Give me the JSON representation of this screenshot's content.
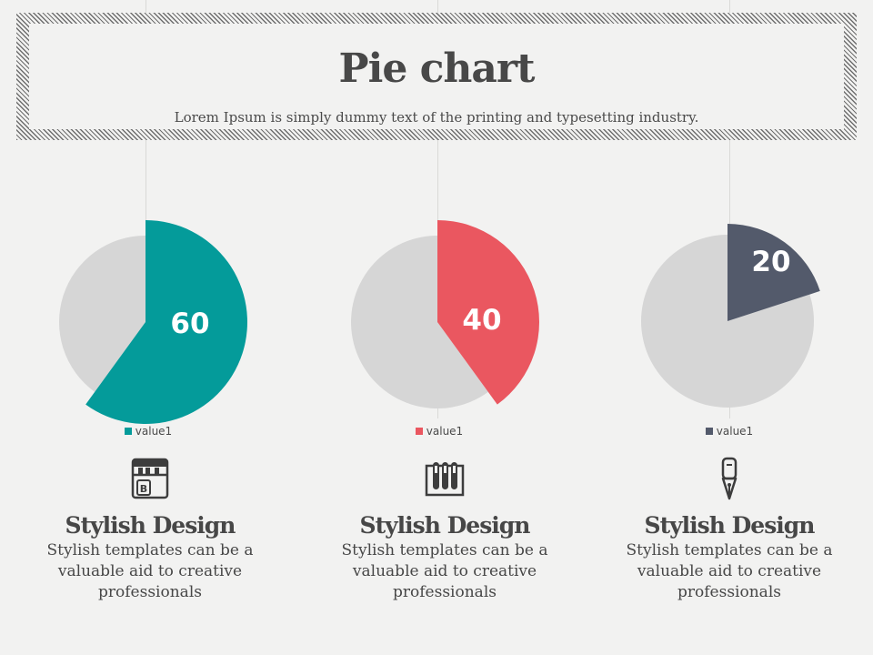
{
  "header": {
    "title": "Pie chart",
    "subtitle": "Lorem Ipsum is simply dummy text of the printing and typesetting industry."
  },
  "colors": {
    "teal": "#049b9a",
    "red": "#ea5760",
    "slate": "#535a6b",
    "remainder": "#d6d6d6"
  },
  "chart_data": [
    {
      "type": "pie",
      "categories": [
        "value1",
        ""
      ],
      "values": [
        60,
        40
      ],
      "legend": [
        "value1"
      ],
      "data_label": "60",
      "exploded": true,
      "colors": [
        "#049b9a",
        "#d6d6d6"
      ]
    },
    {
      "type": "pie",
      "categories": [
        "value1",
        ""
      ],
      "values": [
        40,
        60
      ],
      "legend": [
        "value1"
      ],
      "data_label": "40",
      "exploded": true,
      "colors": [
        "#ea5760",
        "#d6d6d6"
      ]
    },
    {
      "type": "pie",
      "categories": [
        "value1",
        ""
      ],
      "values": [
        20,
        80
      ],
      "legend": [
        "value1"
      ],
      "data_label": "20",
      "exploded": true,
      "colors": [
        "#535a6b",
        "#d6d6d6"
      ]
    }
  ],
  "features": [
    {
      "icon": "bookshelf-icon",
      "title": "Stylish Design",
      "text": "Stylish templates can be a valuable aid to creative professionals"
    },
    {
      "icon": "test-tubes-icon",
      "title": "Stylish Design",
      "text": "Stylish templates can be a valuable aid to creative professionals"
    },
    {
      "icon": "fountain-pen-icon",
      "title": "Stylish Design",
      "text": "Stylish templates can be a valuable aid to creative professionals"
    }
  ]
}
